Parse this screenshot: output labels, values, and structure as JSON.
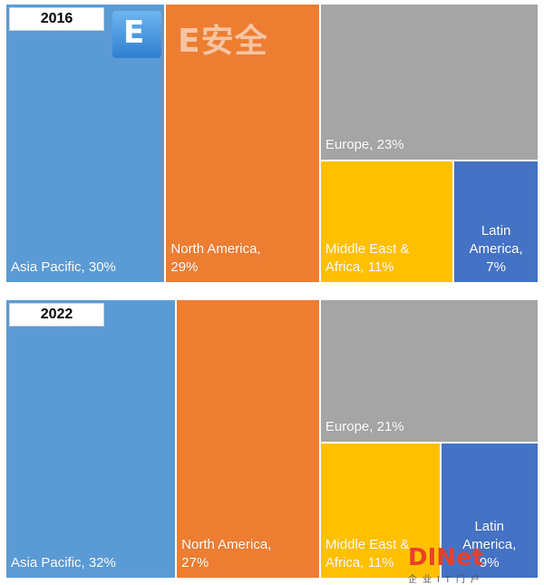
{
  "colors": {
    "Asia Pacific": "#5b9bd5",
    "North America": "#ed7d31",
    "Europe": "#a5a5a5",
    "Middle East & Africa": "#ffc000",
    "Latin America": "#4472c4"
  },
  "watermarks": {
    "top_logo_letter": "E",
    "top_wordmark": "E安全",
    "bottom_wordmark": "DINet",
    "bottom_subtext": "企业IT门户"
  },
  "chart_data": [
    {
      "type": "treemap",
      "year_label": "2016",
      "segments": [
        {
          "name": "Asia Pacific",
          "value": 30,
          "label": "Asia Pacific, 30%"
        },
        {
          "name": "North America",
          "value": 29,
          "label": "North America,\n29%"
        },
        {
          "name": "Europe",
          "value": 23,
          "label": "Europe, 23%"
        },
        {
          "name": "Middle East & Africa",
          "value": 11,
          "label": "Middle East &\nAfrica, 11%"
        },
        {
          "name": "Latin America",
          "value": 7,
          "label": "Latin\nAmerica,\n7%"
        }
      ]
    },
    {
      "type": "treemap",
      "year_label": "2022",
      "segments": [
        {
          "name": "Asia Pacific",
          "value": 32,
          "label": "Asia Pacific, 32%"
        },
        {
          "name": "North America",
          "value": 27,
          "label": "North America,\n27%"
        },
        {
          "name": "Europe",
          "value": 21,
          "label": "Europe, 21%"
        },
        {
          "name": "Middle East & Africa",
          "value": 11,
          "label": "Middle East &\nAfrica, 11%"
        },
        {
          "name": "Latin America",
          "value": 9,
          "label": "Latin\nAmerica,\n9%"
        }
      ]
    }
  ]
}
